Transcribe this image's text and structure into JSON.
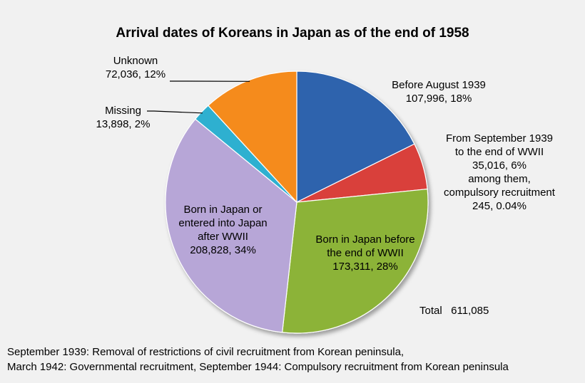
{
  "chart_data": {
    "type": "pie",
    "title": "Arrival dates of Koreans in Japan as of the end of 1958",
    "slices": [
      {
        "category": "Before August 1939",
        "value": 107996,
        "percent_label": "18%",
        "color": "#2e64ad",
        "label_lines": [
          "Before August 1939",
          "107,996, 18%"
        ]
      },
      {
        "category": "From September 1939 to the end of WWII",
        "value": 35016,
        "percent_label": "6%",
        "color": "#d9403b",
        "label_lines": [
          "From September 1939",
          "to the end of WWII",
          "35,016, 6%",
          "among them,",
          "compulsory recruitment",
          "245, 0.04%"
        ]
      },
      {
        "category": "Born in Japan before the end of WWII",
        "value": 173311,
        "percent_label": "28%",
        "color": "#8cb339",
        "label_lines": [
          "Born in Japan before",
          "the end of  WWII",
          "173,311, 28%"
        ]
      },
      {
        "category": "Born in Japan or entered into Japan after WWII",
        "value": 208828,
        "percent_label": "34%",
        "color": "#b7a6d7",
        "label_lines": [
          "Born in Japan or",
          "entered into Japan",
          "after WWII",
          "208,828, 34%"
        ]
      },
      {
        "category": "Missing",
        "value": 13898,
        "percent_label": "2%",
        "color": "#2fb0d0",
        "label_lines": [
          "Missing",
          "13,898, 2%"
        ]
      },
      {
        "category": "Unknown",
        "value": 72036,
        "percent_label": "12%",
        "color": "#f58b1f",
        "label_lines": [
          "Unknown",
          "72,036, 12%"
        ]
      }
    ],
    "total_label": "Total   611,085"
  },
  "footnotes": [
    "September 1939: Removal of restrictions of civil recruitment from Korean peninsula,",
    "March 1942: Governmental recruitment, September 1944: Compulsory recruitment from Korean peninsula"
  ]
}
